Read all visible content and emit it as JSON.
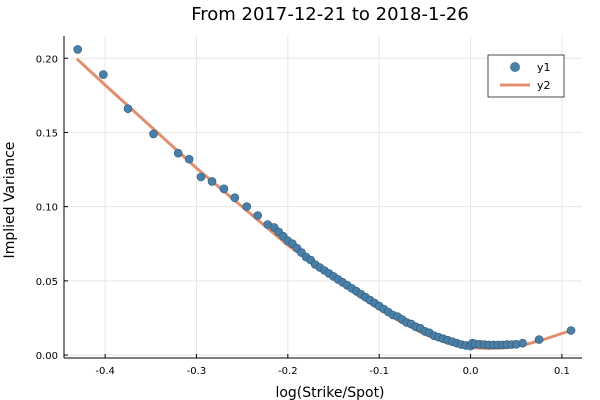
{
  "chart_data": {
    "type": "scatter",
    "title": "From 2017-12-21 to 2018-1-26",
    "xlabel": "log(Strike/Spot)",
    "ylabel": "Implied Variance",
    "xlim": [
      -0.445,
      0.122
    ],
    "ylim": [
      -0.002,
      0.215
    ],
    "x_ticks": [
      -0.4,
      -0.3,
      -0.2,
      -0.1,
      0.0,
      0.1
    ],
    "x_tick_labels": [
      "-0.4",
      "-0.3",
      "-0.2",
      "-0.1",
      "0.0",
      "0.1"
    ],
    "y_ticks": [
      0.0,
      0.05,
      0.1,
      0.15,
      0.2
    ],
    "y_tick_labels": [
      "0.00",
      "0.05",
      "0.10",
      "0.15",
      "0.20"
    ],
    "grid": true,
    "legend_position": "top-right",
    "series": [
      {
        "name": "y1",
        "kind": "scatter",
        "color": "#4a7fa8",
        "points": [
          [
            -0.43,
            0.206
          ],
          [
            -0.402,
            0.189
          ],
          [
            -0.375,
            0.166
          ],
          [
            -0.347,
            0.149
          ],
          [
            -0.32,
            0.136
          ],
          [
            -0.308,
            0.132
          ],
          [
            -0.295,
            0.12
          ],
          [
            -0.283,
            0.117
          ],
          [
            -0.27,
            0.112
          ],
          [
            -0.258,
            0.106
          ],
          [
            -0.245,
            0.1
          ],
          [
            -0.233,
            0.094
          ],
          [
            -0.222,
            0.088
          ],
          [
            -0.215,
            0.086
          ],
          [
            -0.21,
            0.083
          ],
          [
            -0.205,
            0.08
          ],
          [
            -0.2,
            0.077
          ],
          [
            -0.195,
            0.075
          ],
          [
            -0.19,
            0.072
          ],
          [
            -0.185,
            0.069
          ],
          [
            -0.18,
            0.066
          ],
          [
            -0.175,
            0.064
          ],
          [
            -0.17,
            0.061
          ],
          [
            -0.165,
            0.059
          ],
          [
            -0.16,
            0.057
          ],
          [
            -0.155,
            0.055
          ],
          [
            -0.15,
            0.053
          ],
          [
            -0.145,
            0.051
          ],
          [
            -0.14,
            0.049
          ],
          [
            -0.135,
            0.047
          ],
          [
            -0.13,
            0.045
          ],
          [
            -0.125,
            0.043
          ],
          [
            -0.12,
            0.041
          ],
          [
            -0.115,
            0.039
          ],
          [
            -0.11,
            0.037
          ],
          [
            -0.105,
            0.035
          ],
          [
            -0.1,
            0.033
          ],
          [
            -0.095,
            0.031
          ],
          [
            -0.09,
            0.029
          ],
          [
            -0.085,
            0.027
          ],
          [
            -0.08,
            0.026
          ],
          [
            -0.075,
            0.024
          ],
          [
            -0.07,
            0.022
          ],
          [
            -0.065,
            0.021
          ],
          [
            -0.06,
            0.019
          ],
          [
            -0.055,
            0.018
          ],
          [
            -0.05,
            0.016
          ],
          [
            -0.045,
            0.015
          ],
          [
            -0.04,
            0.013
          ],
          [
            -0.035,
            0.012
          ],
          [
            -0.03,
            0.011
          ],
          [
            -0.025,
            0.01
          ],
          [
            -0.02,
            0.009
          ],
          [
            -0.015,
            0.008
          ],
          [
            -0.01,
            0.007
          ],
          [
            -0.005,
            0.0065
          ],
          [
            0.0,
            0.006
          ],
          [
            0.002,
            0.008
          ],
          [
            0.005,
            0.0075
          ],
          [
            0.01,
            0.0072
          ],
          [
            0.015,
            0.007
          ],
          [
            0.02,
            0.0068
          ],
          [
            0.025,
            0.0068
          ],
          [
            0.03,
            0.0068
          ],
          [
            0.035,
            0.0068
          ],
          [
            0.04,
            0.007
          ],
          [
            0.045,
            0.007
          ],
          [
            0.05,
            0.0072
          ],
          [
            0.057,
            0.008
          ],
          [
            0.075,
            0.0104
          ],
          [
            0.11,
            0.0165
          ]
        ]
      },
      {
        "name": "y2",
        "kind": "line",
        "color": "#e0906e",
        "points": [
          [
            -0.43,
            0.199
          ],
          [
            -0.4,
            0.182
          ],
          [
            -0.35,
            0.154
          ],
          [
            -0.3,
            0.126
          ],
          [
            -0.25,
            0.1
          ],
          [
            -0.2,
            0.074
          ],
          [
            -0.175,
            0.063
          ],
          [
            -0.15,
            0.052
          ],
          [
            -0.125,
            0.041
          ],
          [
            -0.1,
            0.031
          ],
          [
            -0.075,
            0.022
          ],
          [
            -0.05,
            0.014
          ],
          [
            -0.025,
            0.008
          ],
          [
            0.0,
            0.005
          ],
          [
            0.02,
            0.0045
          ],
          [
            0.04,
            0.005
          ],
          [
            0.06,
            0.007
          ],
          [
            0.08,
            0.0105
          ],
          [
            0.11,
            0.0165
          ]
        ]
      }
    ]
  }
}
